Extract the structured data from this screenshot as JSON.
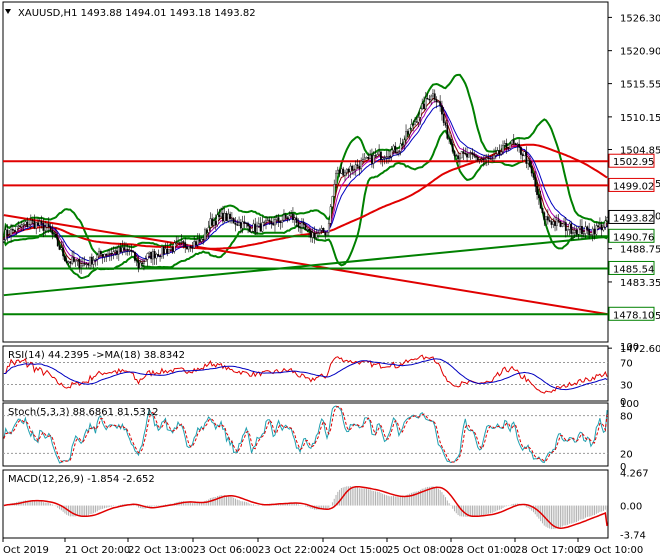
{
  "chart_data": {
    "type": "candlestick",
    "symbol": "XAUUSD,H1",
    "ohlc": [
      "1493.88",
      "1494.01",
      "1493.18",
      "1493.82"
    ],
    "current_price": 1493.82,
    "price_ylim": [
      1473.6,
      1528.8
    ],
    "price_ticks": [
      1526.3,
      1520.9,
      1515.55,
      1510.15,
      1504.85,
      1499.45,
      1494.1,
      1488.75,
      1483.35,
      1477.95,
      1472.6
    ],
    "price_tick_labels": [
      "1526.30",
      "1520.90",
      "1515.55",
      "1510.15",
      "1504.85",
      "1499.45",
      "1494.10",
      "1488.75",
      "1483.35",
      "1477.95",
      "1472.60"
    ],
    "levels": [
      {
        "value": 1502.95,
        "label": "1502.95",
        "color": "#e00000"
      },
      {
        "value": 1499.02,
        "label": "1499.02",
        "color": "#e00000"
      },
      {
        "value": 1490.76,
        "label": "1490.76",
        "color": "#008000"
      },
      {
        "value": 1485.54,
        "label": "1485.54",
        "color": "#008000"
      },
      {
        "value": 1478.1,
        "label": "1478.10",
        "color": "#008000"
      }
    ],
    "time_labels": [
      "Oct 2019",
      "21 Oct 20:00",
      "22 Oct 13:00",
      "23 Oct 06:00",
      "23 Oct 22:00",
      "24 Oct 15:00",
      "25 Oct 08:00",
      "28 Oct 01:00",
      "28 Oct 17:00",
      "29 Oct 10:00"
    ],
    "close_anchors": [
      [
        0,
        1491.0
      ],
      [
        15,
        1493.0
      ],
      [
        25,
        1492.0
      ],
      [
        35,
        1486.8
      ],
      [
        45,
        1486.2
      ],
      [
        55,
        1488.0
      ],
      [
        70,
        1488.5
      ],
      [
        75,
        1486.0
      ],
      [
        80,
        1487.5
      ],
      [
        95,
        1489.0
      ],
      [
        110,
        1490.0
      ],
      [
        115,
        1493.0
      ],
      [
        122,
        1494.0
      ],
      [
        130,
        1493.0
      ],
      [
        140,
        1492.0
      ],
      [
        150,
        1493.0
      ],
      [
        160,
        1494.0
      ],
      [
        170,
        1491.0
      ],
      [
        180,
        1491.5
      ],
      [
        185,
        1501.0
      ],
      [
        195,
        1502.0
      ],
      [
        210,
        1504.0
      ],
      [
        220,
        1505.0
      ],
      [
        228,
        1509.0
      ],
      [
        232,
        1511.0
      ],
      [
        238,
        1514.0
      ],
      [
        242,
        1513.0
      ],
      [
        246,
        1508.0
      ],
      [
        252,
        1504.0
      ],
      [
        262,
        1503.5
      ],
      [
        272,
        1503.0
      ],
      [
        282,
        1506.0
      ],
      [
        290,
        1504.0
      ],
      [
        295,
        1500.0
      ],
      [
        300,
        1494.0
      ],
      [
        306,
        1493.0
      ],
      [
        316,
        1492.0
      ],
      [
        326,
        1491.5
      ],
      [
        334,
        1492.5
      ],
      [
        337,
        1493.82
      ]
    ],
    "trendlines": [
      {
        "color": "#e00000",
        "from": [
          0,
          1494.2
        ],
        "to": [
          337,
          1478.1
        ]
      },
      {
        "color": "#008000",
        "from": [
          0,
          1481.2
        ],
        "to": [
          337,
          1490.7
        ]
      }
    ],
    "rsi": {
      "label": "RSI(14) 44.2395  ->MA(18) 38.8342",
      "value": 44.2395,
      "ma": 38.8342,
      "ticks": [
        100,
        70,
        30,
        0
      ],
      "ylim": [
        0,
        100
      ]
    },
    "stoch": {
      "label": "Stoch(5,3,3) 88.6861 81.5312",
      "k": 88.6861,
      "d": 81.5312,
      "ticks": [
        100,
        80,
        20,
        0
      ],
      "ylim": [
        0,
        100
      ]
    },
    "macd": {
      "label": "MACD(12,26,9) -1.854 -2.652",
      "main": -1.854,
      "signal": -2.652,
      "ticks": [
        4.267,
        0.0,
        -3.74
      ],
      "tick_labels": [
        "4.267",
        "0.00",
        "-3.74"
      ],
      "ylim": [
        -4.2,
        4.6
      ]
    }
  },
  "ui": {
    "title": "XAUUSD,H1  1493.88  1494.01  1493.18  1493.82",
    "price_tag": "1493.82"
  }
}
